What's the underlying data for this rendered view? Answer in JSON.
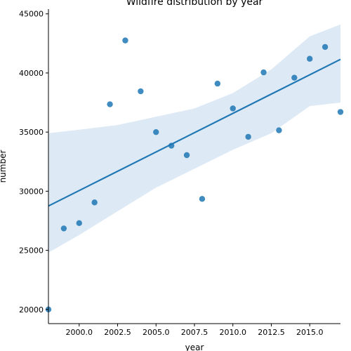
{
  "chart_data": {
    "type": "scatter",
    "title": "Wildfire distribution by year",
    "xlabel": "year",
    "ylabel": "number",
    "xlim": [
      1998,
      2017
    ],
    "ylim": [
      18800,
      45400
    ],
    "xticks": [
      2000,
      2002.5,
      2005,
      2007.5,
      2010,
      2012.5,
      2015
    ],
    "xtick_labels": [
      "2000.0",
      "2002.5",
      "2005.0",
      "2007.5",
      "2010.0",
      "2012.5",
      "2015.0"
    ],
    "yticks": [
      20000,
      25000,
      30000,
      35000,
      40000,
      45000
    ],
    "ytick_labels": [
      "20000",
      "25000",
      "30000",
      "35000",
      "40000",
      "45000"
    ],
    "grid": false,
    "regression": {
      "line": [
        [
          1998,
          28750
        ],
        [
          2017,
          41150
        ]
      ],
      "ci_band": [
        [
          1998,
          24800,
          34900
        ],
        [
          2000,
          26300,
          35200
        ],
        [
          2002.5,
          28300,
          35600
        ],
        [
          2005,
          30300,
          36300
        ],
        [
          2007.5,
          31900,
          37000
        ],
        [
          2010,
          33500,
          38300
        ],
        [
          2012.5,
          34900,
          40300
        ],
        [
          2015,
          37200,
          43100
        ],
        [
          2017,
          37500,
          44100
        ]
      ]
    },
    "series": [
      {
        "color": "#1f77b4",
        "x": [
          1998,
          1999,
          2000,
          2001,
          2002,
          2003,
          2004,
          2005,
          2006,
          2007,
          2008,
          2009,
          2010,
          2011,
          2012,
          2013,
          2014,
          2015,
          2016,
          2017
        ],
        "values": [
          20000,
          26850,
          27300,
          29050,
          37350,
          42750,
          38450,
          35000,
          33850,
          33050,
          29350,
          39100,
          37000,
          34600,
          40050,
          35150,
          39600,
          41200,
          42200,
          36700
        ]
      }
    ],
    "colors": {
      "points": "#1f77b4",
      "line": "#1f77b4",
      "band": "#c6dbef"
    }
  }
}
